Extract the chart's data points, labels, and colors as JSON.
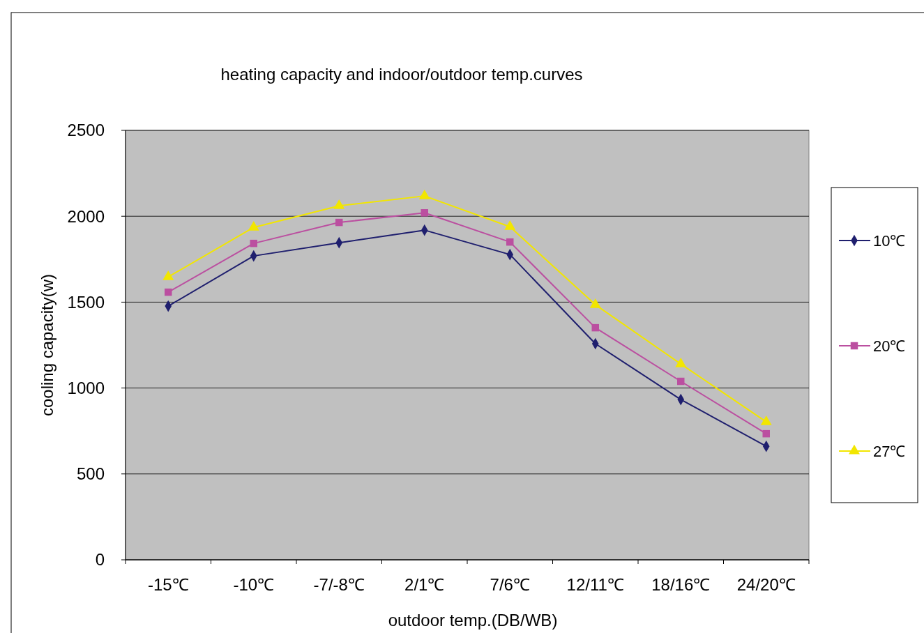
{
  "chart_data": {
    "type": "line",
    "title": "heating capacity and indoor/outdoor temp.curves",
    "xlabel": "outdoor temp.(DB/WB)",
    "ylabel": "cooling capacity(w)",
    "categories": [
      "-15℃",
      "-10℃",
      "-7/-8℃",
      "2/1℃",
      "7/6℃",
      "12/11℃",
      "18/16℃",
      "24/20℃"
    ],
    "series": [
      {
        "name": "10℃",
        "color": "#1f1f6e",
        "marker": "diamond",
        "values": [
          1477,
          1769,
          1846,
          1919,
          1777,
          1258,
          933,
          661
        ]
      },
      {
        "name": "20℃",
        "color": "#bb4fa0",
        "marker": "square",
        "values": [
          1558,
          1842,
          1964,
          2020,
          1850,
          1351,
          1039,
          734
        ]
      },
      {
        "name": "27℃",
        "color": "#f2e600",
        "marker": "triangle",
        "values": [
          1647,
          1935,
          2061,
          2118,
          1939,
          1485,
          1140,
          803
        ]
      }
    ],
    "ylim": [
      0,
      2500
    ],
    "yticks": [
      0,
      500,
      1000,
      1500,
      2000,
      2500
    ],
    "grid": "y",
    "legend": "right"
  }
}
